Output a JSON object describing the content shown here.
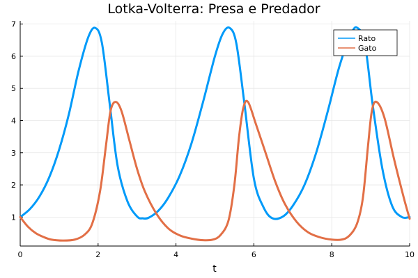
{
  "chart_data": {
    "type": "line",
    "title": "Lotka-Volterra: Presa e Predador",
    "xlabel": "t",
    "ylabel": "",
    "xlim": [
      0,
      10
    ],
    "ylim": [
      0.1,
      7.1
    ],
    "xticks": [
      0,
      2,
      4,
      6,
      8,
      10
    ],
    "yticks": [
      1,
      2,
      3,
      4,
      5,
      6,
      7
    ],
    "grid": true,
    "legend_position": "top-right",
    "series": [
      {
        "name": "Rato",
        "color": "#009af9",
        "x": [
          0,
          0.25,
          0.5,
          0.75,
          1.0,
          1.25,
          1.5,
          1.75,
          1.93,
          2.1,
          2.3,
          2.5,
          2.75,
          3.0,
          3.15,
          3.3,
          3.55,
          3.8,
          4.1,
          4.4,
          4.7,
          5.0,
          5.2,
          5.38,
          5.55,
          5.75,
          6.0,
          6.25,
          6.48,
          6.75,
          7.0,
          7.3,
          7.6,
          7.9,
          8.2,
          8.5,
          8.66,
          8.85,
          9.05,
          9.3,
          9.55,
          9.8,
          10.0
        ],
        "y": [
          1.0,
          1.25,
          1.65,
          2.25,
          3.1,
          4.2,
          5.55,
          6.6,
          6.88,
          6.4,
          4.5,
          2.6,
          1.5,
          1.02,
          0.96,
          0.98,
          1.2,
          1.6,
          2.3,
          3.3,
          4.6,
          6.0,
          6.7,
          6.88,
          6.4,
          4.6,
          2.2,
          1.3,
          0.96,
          1.02,
          1.35,
          2.0,
          3.0,
          4.3,
          5.7,
          6.7,
          6.88,
          6.4,
          4.5,
          2.5,
          1.35,
          1.0,
          1.0
        ]
      },
      {
        "name": "Gato",
        "color": "#e26f46",
        "x": [
          0,
          0.2,
          0.4,
          0.6,
          0.8,
          1.1,
          1.4,
          1.65,
          1.85,
          2.05,
          2.2,
          2.32,
          2.45,
          2.6,
          2.8,
          3.0,
          3.2,
          3.5,
          3.8,
          4.1,
          4.4,
          4.7,
          4.95,
          5.15,
          5.35,
          5.5,
          5.62,
          5.73,
          5.85,
          6.05,
          6.3,
          6.55,
          6.8,
          7.1,
          7.4,
          7.7,
          8.0,
          8.25,
          8.45,
          8.65,
          8.8,
          8.93,
          9.03,
          9.15,
          9.35,
          9.6,
          9.85,
          10.0
        ],
        "y": [
          1.0,
          0.7,
          0.5,
          0.38,
          0.3,
          0.27,
          0.3,
          0.45,
          0.8,
          1.8,
          3.2,
          4.3,
          4.58,
          4.3,
          3.4,
          2.5,
          1.8,
          1.1,
          0.65,
          0.43,
          0.33,
          0.28,
          0.3,
          0.45,
          0.9,
          2.0,
          3.5,
          4.4,
          4.58,
          3.9,
          3.0,
          2.1,
          1.4,
          0.85,
          0.52,
          0.37,
          0.3,
          0.3,
          0.42,
          0.8,
          1.6,
          3.2,
          4.3,
          4.58,
          4.1,
          2.8,
          1.6,
          0.95
        ]
      }
    ]
  }
}
